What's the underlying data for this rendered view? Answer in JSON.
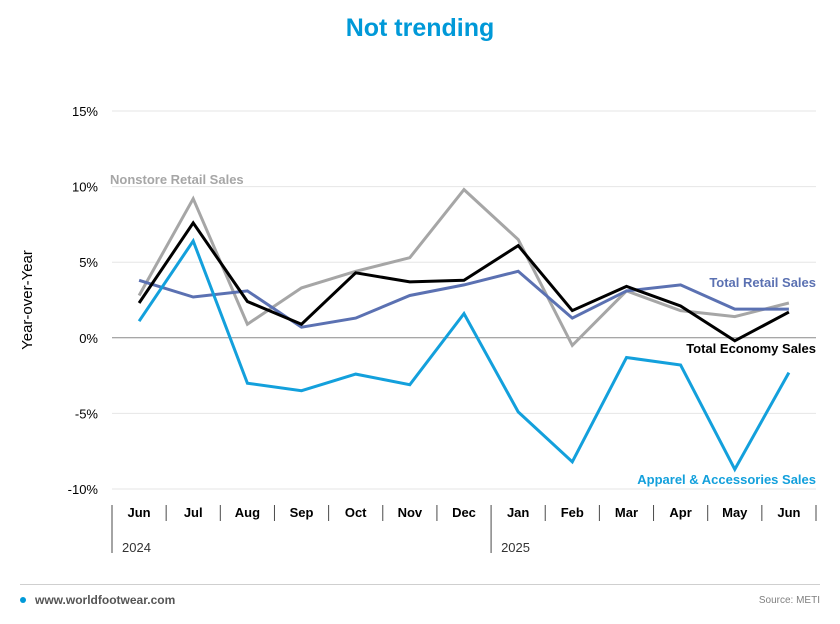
{
  "header": {
    "title": "Not trending"
  },
  "colors": {
    "title": "#0099d8",
    "grid": "#e6e6e6",
    "zero": "#8a8a8a",
    "axis_text": "#000000",
    "footer_dot": "#0099d8"
  },
  "footer": {
    "website": "www.worldfootwear.com",
    "source": "Source: METI"
  },
  "chart_data": {
    "type": "line",
    "ylabel": "Year-over-Year",
    "xlabel": "",
    "ylim": [
      -10,
      15
    ],
    "yticks": [
      15,
      10,
      5,
      0,
      -5,
      -10
    ],
    "ytick_labels": [
      "15%",
      "10%",
      "5%",
      "0%",
      "-5%",
      "-10%"
    ],
    "categories": [
      "Jun",
      "Jul",
      "Aug",
      "Sep",
      "Oct",
      "Nov",
      "Dec",
      "Jan",
      "Feb",
      "Mar",
      "Apr",
      "May",
      "Jun"
    ],
    "year_labels": [
      "2024",
      "2025"
    ],
    "grid": true,
    "series": [
      {
        "name": "Nonstore Retail Sales",
        "color": "#a6a6a6",
        "values": [
          2.8,
          9.2,
          0.9,
          3.3,
          4.4,
          5.3,
          9.8,
          6.5,
          -0.5,
          3.1,
          1.8,
          1.4,
          2.3
        ]
      },
      {
        "name": "Total Retail Sales",
        "color": "#5b71b2",
        "values": [
          3.8,
          2.7,
          3.1,
          0.7,
          1.3,
          2.8,
          3.5,
          4.4,
          1.3,
          3.1,
          3.5,
          1.9,
          1.9
        ]
      },
      {
        "name": "Total Economy Sales",
        "color": "#000000",
        "values": [
          2.3,
          7.6,
          2.4,
          0.9,
          4.3,
          3.7,
          3.8,
          6.1,
          1.8,
          3.4,
          2.1,
          -0.2,
          1.7
        ]
      },
      {
        "name": "Apparel & Accessories Sales",
        "color": "#13a0dc",
        "values": [
          1.1,
          6.4,
          -3.0,
          -3.5,
          -2.4,
          -3.1,
          1.6,
          -4.9,
          -8.2,
          -1.3,
          -1.8,
          -8.7,
          -2.3
        ]
      }
    ]
  }
}
